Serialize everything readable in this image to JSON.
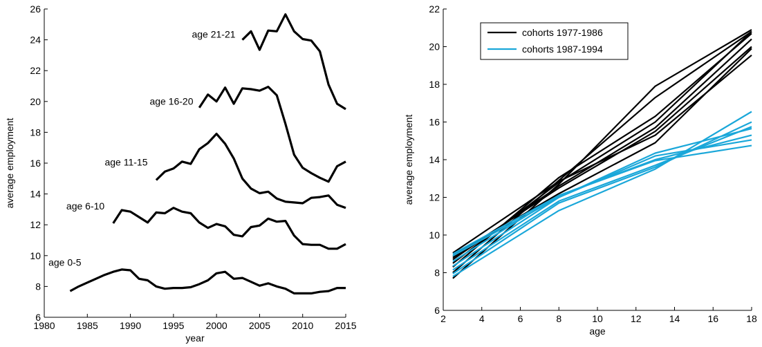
{
  "chart_data": [
    {
      "type": "line",
      "title": "",
      "xlabel": "year",
      "ylabel": "average employment",
      "xlim": [
        1980,
        2015
      ],
      "ylim": [
        6,
        26
      ],
      "xticks": [
        1980,
        1985,
        1990,
        1995,
        2000,
        2005,
        2010,
        2015
      ],
      "yticks": [
        6,
        8,
        10,
        12,
        14,
        16,
        18,
        20,
        22,
        24,
        26
      ],
      "grid": false,
      "line_color": "#000000",
      "series": [
        {
          "name": "age 0-5",
          "x": [
            1983,
            1984,
            1985,
            1986,
            1987,
            1988,
            1989,
            1990,
            1991,
            1992,
            1993,
            1994,
            1995,
            1996,
            1997,
            1998,
            1999,
            2000,
            2001,
            2002,
            2003,
            2004,
            2005,
            2006,
            2007,
            2008,
            2009,
            2010,
            2011,
            2012,
            2013,
            2014,
            2015
          ],
          "y": [
            7.7,
            8.0,
            8.25,
            8.5,
            8.75,
            8.95,
            9.1,
            9.05,
            8.5,
            8.4,
            8.0,
            7.85,
            7.9,
            7.9,
            7.95,
            8.15,
            8.4,
            8.85,
            8.95,
            8.5,
            8.55,
            8.3,
            8.05,
            8.2,
            8.0,
            7.85,
            7.55,
            7.55,
            7.55,
            7.65,
            7.7,
            7.9,
            7.9
          ]
        },
        {
          "name": "age 6-10",
          "x": [
            1988,
            1989,
            1990,
            1991,
            1992,
            1993,
            1994,
            1995,
            1996,
            1997,
            1998,
            1999,
            2000,
            2001,
            2002,
            2003,
            2004,
            2005,
            2006,
            2007,
            2008,
            2009,
            2010,
            2011,
            2012,
            2013,
            2014,
            2015
          ],
          "y": [
            12.1,
            12.95,
            12.85,
            12.5,
            12.15,
            12.8,
            12.75,
            13.1,
            12.85,
            12.75,
            12.15,
            11.8,
            12.05,
            11.9,
            11.35,
            11.25,
            11.85,
            11.95,
            12.4,
            12.2,
            12.25,
            11.3,
            10.75,
            10.7,
            10.7,
            10.45,
            10.45,
            10.75
          ]
        },
        {
          "name": "age 11-15",
          "x": [
            1993,
            1994,
            1995,
            1996,
            1997,
            1998,
            1999,
            2000,
            2001,
            2002,
            2003,
            2004,
            2005,
            2006,
            2007,
            2008,
            2009,
            2010,
            2011,
            2012,
            2013,
            2014,
            2015
          ],
          "y": [
            14.9,
            15.45,
            15.65,
            16.1,
            15.95,
            16.9,
            17.3,
            17.9,
            17.25,
            16.3,
            15.0,
            14.35,
            14.05,
            14.15,
            13.7,
            13.5,
            13.45,
            13.4,
            13.75,
            13.8,
            13.9,
            13.3,
            13.1
          ]
        },
        {
          "name": "age 16-20",
          "x": [
            1998,
            1999,
            2000,
            2001,
            2002,
            2003,
            2004,
            2005,
            2006,
            2007,
            2008,
            2009,
            2010,
            2011,
            2012,
            2013,
            2014,
            2015
          ],
          "y": [
            19.6,
            20.45,
            20.0,
            20.9,
            19.85,
            20.85,
            20.8,
            20.7,
            20.95,
            20.4,
            18.55,
            16.55,
            15.7,
            15.35,
            15.05,
            14.8,
            15.8,
            16.1
          ]
        },
        {
          "name": "age 21-21",
          "x": [
            2003,
            2004,
            2005,
            2006,
            2007,
            2008,
            2009,
            2010,
            2011,
            2012,
            2013,
            2014,
            2015
          ],
          "y": [
            24.0,
            24.55,
            23.35,
            24.6,
            24.55,
            25.65,
            24.55,
            24.05,
            23.95,
            23.25,
            21.1,
            19.85,
            19.5
          ]
        }
      ]
    },
    {
      "type": "line",
      "title": "",
      "xlabel": "age",
      "ylabel": "average employment",
      "xlim": [
        2,
        18
      ],
      "ylim": [
        6,
        22
      ],
      "xticks": [
        2,
        4,
        6,
        8,
        10,
        12,
        14,
        16,
        18
      ],
      "yticks": [
        6,
        8,
        10,
        12,
        14,
        16,
        18,
        20,
        22
      ],
      "grid": false,
      "legend_position": "top-left",
      "legend": [
        "cohorts 1977-1986",
        "cohorts 1987-1994"
      ],
      "group_colors": [
        "#000000",
        "#1aa7d9"
      ],
      "x": [
        2.5,
        8,
        13,
        18
      ],
      "series": [
        {
          "group": 0,
          "y": [
            7.7,
            12.7,
            17.9,
            20.9
          ]
        },
        {
          "group": 0,
          "y": [
            8.0,
            12.9,
            17.3,
            20.8
          ]
        },
        {
          "group": 0,
          "y": [
            8.3,
            13.05,
            16.3,
            20.7
          ]
        },
        {
          "group": 0,
          "y": [
            8.5,
            12.8,
            16.0,
            20.8
          ]
        },
        {
          "group": 0,
          "y": [
            8.7,
            12.6,
            15.7,
            20.4
          ]
        },
        {
          "group": 0,
          "y": [
            8.8,
            12.5,
            15.5,
            20.0
          ]
        },
        {
          "group": 0,
          "y": [
            8.9,
            12.2,
            14.9,
            19.9
          ]
        },
        {
          "group": 0,
          "y": [
            9.05,
            12.85,
            15.3,
            19.55
          ]
        },
        {
          "group": 1,
          "y": [
            7.8,
            11.3,
            13.5,
            16.55
          ]
        },
        {
          "group": 1,
          "y": [
            7.95,
            11.7,
            13.6,
            16.0
          ]
        },
        {
          "group": 1,
          "y": [
            8.15,
            11.8,
            13.7,
            15.75
          ]
        },
        {
          "group": 1,
          "y": [
            8.35,
            12.0,
            14.35,
            15.65
          ]
        },
        {
          "group": 1,
          "y": [
            8.6,
            12.1,
            14.0,
            15.3
          ]
        },
        {
          "group": 1,
          "y": [
            8.9,
            12.0,
            14.2,
            15.05
          ]
        },
        {
          "group": 1,
          "y": [
            9.0,
            12.1,
            13.95,
            14.75
          ]
        }
      ]
    }
  ]
}
